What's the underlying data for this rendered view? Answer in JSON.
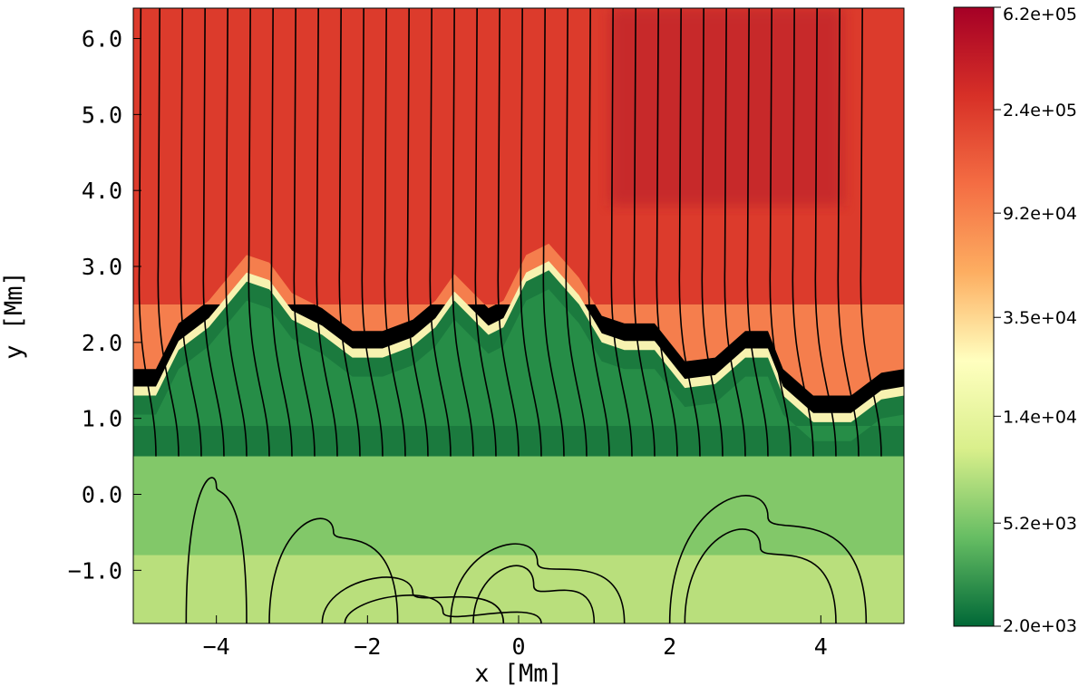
{
  "chart_data": {
    "type": "heatmap",
    "title": "",
    "xlabel": "x [Mm]",
    "ylabel": "y [Mm]",
    "xlim": [
      -5.1,
      5.1
    ],
    "ylim": [
      -1.7,
      6.4
    ],
    "x_ticks": [
      {
        "value": -4,
        "label": "−4"
      },
      {
        "value": -2,
        "label": "−2"
      },
      {
        "value": 0,
        "label": "0"
      },
      {
        "value": 2,
        "label": "2"
      },
      {
        "value": 4,
        "label": "4"
      }
    ],
    "y_ticks": [
      {
        "value": -1,
        "label": "−1.0"
      },
      {
        "value": 0,
        "label": "0.0"
      },
      {
        "value": 1,
        "label": "1.0"
      },
      {
        "value": 2,
        "label": "2.0"
      },
      {
        "value": 3,
        "label": "3.0"
      },
      {
        "value": 4,
        "label": "4.0"
      },
      {
        "value": 5,
        "label": "5.0"
      },
      {
        "value": 6,
        "label": "6.0"
      }
    ],
    "colorbar": {
      "scale": "log",
      "range": [
        2000,
        620000
      ],
      "ticks": [
        {
          "value": 620000,
          "label": "6.2e+05"
        },
        {
          "value": 240000,
          "label": "2.4e+05"
        },
        {
          "value": 92000,
          "label": "9.2e+04"
        },
        {
          "value": 35000,
          "label": "3.5e+04"
        },
        {
          "value": 14000,
          "label": "1.4e+04"
        },
        {
          "value": 5200,
          "label": "5.2e+03"
        },
        {
          "value": 2000,
          "label": "2.0e+03"
        }
      ],
      "colors": [
        "#006837",
        "#66bd63",
        "#d9ef8b",
        "#ffffbf",
        "#fdae61",
        "#f46d43",
        "#d73027",
        "#a50026"
      ]
    },
    "transition_region_height": [
      [
        -5.1,
        1.3
      ],
      [
        -4.8,
        1.3
      ],
      [
        -4.5,
        1.9
      ],
      [
        -4.1,
        2.2
      ],
      [
        -3.6,
        2.8
      ],
      [
        -3.3,
        2.7
      ],
      [
        -3.0,
        2.3
      ],
      [
        -2.6,
        2.1
      ],
      [
        -2.2,
        1.8
      ],
      [
        -1.8,
        1.8
      ],
      [
        -1.4,
        1.95
      ],
      [
        -1.1,
        2.2
      ],
      [
        -0.85,
        2.55
      ],
      [
        -0.6,
        2.3
      ],
      [
        -0.4,
        2.1
      ],
      [
        -0.2,
        2.2
      ],
      [
        0.1,
        2.8
      ],
      [
        0.4,
        2.95
      ],
      [
        0.8,
        2.5
      ],
      [
        1.1,
        2.0
      ],
      [
        1.4,
        1.9
      ],
      [
        1.8,
        1.9
      ],
      [
        2.2,
        1.4
      ],
      [
        2.6,
        1.45
      ],
      [
        3.0,
        1.8
      ],
      [
        3.3,
        1.8
      ],
      [
        3.5,
        1.3
      ],
      [
        3.9,
        0.95
      ],
      [
        4.4,
        0.95
      ],
      [
        4.8,
        1.25
      ],
      [
        5.1,
        1.3
      ]
    ],
    "chromosphere_top": 0.55,
    "field_lines": {
      "open_footpoints_x": [
        -4.8,
        -4.5,
        -4.2,
        -3.9,
        -3.6,
        -3.3,
        -3.0,
        -2.7,
        -2.4,
        -2.1,
        -1.8,
        -1.5,
        -1.2,
        -0.9,
        -0.6,
        -0.3,
        0.0,
        0.3,
        0.6,
        0.9,
        1.2,
        1.5,
        1.8,
        2.1,
        2.4,
        2.7,
        3.0,
        3.3,
        3.6,
        3.9,
        4.2,
        4.5,
        4.8
      ],
      "top_x": [
        -5.0,
        -4.75,
        -4.45,
        -4.15,
        -3.85,
        -3.55,
        -3.25,
        -2.95,
        -2.65,
        -2.35,
        -2.05,
        -1.75,
        -1.45,
        -1.15,
        -0.85,
        -0.55,
        -0.25,
        0.05,
        0.35,
        0.65,
        0.95,
        1.25,
        1.55,
        1.85,
        2.15,
        2.45,
        2.75,
        3.05,
        3.35,
        3.65,
        3.95,
        4.25,
        4.55
      ]
    }
  }
}
